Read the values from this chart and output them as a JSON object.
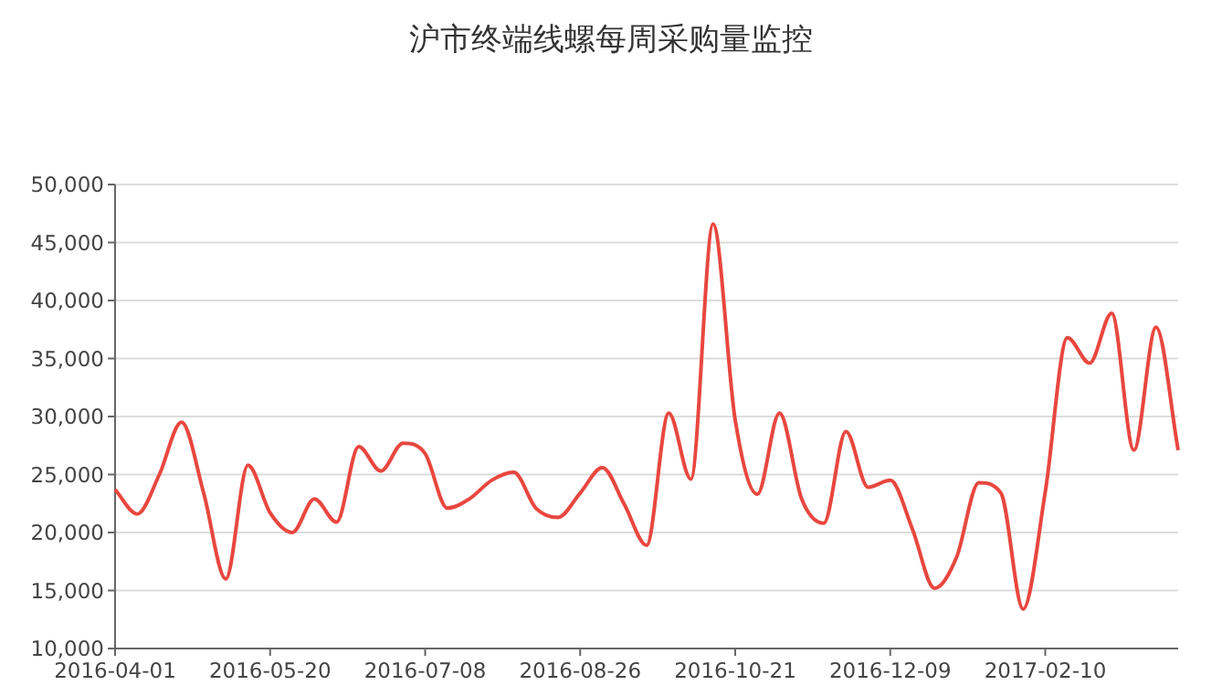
{
  "chart_data": {
    "type": "line",
    "title": "沪市终端线螺每周采购量监控",
    "categories": [
      "2016-04-01",
      null,
      null,
      null,
      null,
      null,
      null,
      "2016-05-20",
      null,
      null,
      null,
      null,
      null,
      null,
      "2016-07-08",
      null,
      null,
      null,
      null,
      null,
      null,
      "2016-08-26",
      null,
      null,
      null,
      null,
      null,
      null,
      "2016-10-21",
      null,
      null,
      null,
      null,
      null,
      null,
      "2016-12-09",
      null,
      null,
      null,
      null,
      null,
      null,
      "2017-02-10",
      null,
      null,
      null,
      null,
      null,
      null
    ],
    "series": [
      {
        "color": "#e8473f",
        "values": [
          23700,
          21600,
          25000,
          29500,
          23400,
          16000,
          25800,
          21700,
          20000,
          22900,
          20900,
          27400,
          25300,
          27700,
          26800,
          22100,
          22900,
          24500,
          25200,
          22100,
          21300,
          23400,
          25600,
          22400,
          18900,
          30300,
          24600,
          46600,
          29700,
          23300,
          30300,
          22900,
          20800,
          28700,
          23900,
          24500,
          20300,
          15200,
          17900,
          24300,
          23400,
          13400,
          23500,
          36800,
          34600,
          38900,
          27100,
          37700,
          27100
        ]
      }
    ],
    "ylim": [
      10000,
      50000
    ],
    "yticks": [
      {
        "value": 10000,
        "label": "10,000"
      },
      {
        "value": 15000,
        "label": "15,000"
      },
      {
        "value": 20000,
        "label": "20,000"
      },
      {
        "value": 25000,
        "label": "25,000"
      },
      {
        "value": 30000,
        "label": "30,000"
      },
      {
        "value": 35000,
        "label": "35,000"
      },
      {
        "value": 40000,
        "label": "40,000"
      },
      {
        "value": 45000,
        "label": "45,000"
      },
      {
        "value": 50000,
        "label": "50,000"
      }
    ],
    "grid": "y",
    "line_style": "solid"
  }
}
